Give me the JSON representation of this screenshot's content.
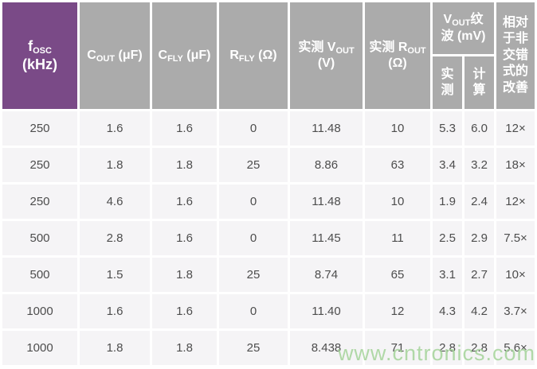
{
  "table": {
    "headers": {
      "fosc": {
        "pre": "f",
        "sub": "OSC",
        "line2": "(kHz)"
      },
      "cout": {
        "pre": "C",
        "sub": "OUT",
        "post": " (μF)"
      },
      "cfly": {
        "pre": "C",
        "sub": "FLY",
        "post": " (μF)"
      },
      "rfly": {
        "pre": "R",
        "sub": "FLY",
        "post": " (Ω)"
      },
      "vout_measured": {
        "pre": "实测 V",
        "sub": "OUT",
        "line2": "(V)"
      },
      "rout_measured": {
        "pre": "实测 R",
        "sub": "OUT",
        "line2": "(Ω)"
      },
      "ripple_group": {
        "pre": "V",
        "sub": "OUT",
        "post": "纹",
        "line2": "波 (mV)"
      },
      "ripple_measured": {
        "l1": "实",
        "l2": "测"
      },
      "ripple_calculated": {
        "l1": "计",
        "l2": "算"
      },
      "improvement": {
        "lines": [
          "相对",
          "于非",
          "交错",
          "式的",
          "改善"
        ]
      }
    },
    "rows": [
      [
        "250",
        "1.6",
        "1.6",
        "0",
        "11.48",
        "10",
        "5.3",
        "6.0",
        "12×"
      ],
      [
        "250",
        "1.8",
        "1.8",
        "25",
        "8.86",
        "63",
        "3.4",
        "3.2",
        "18×"
      ],
      [
        "250",
        "4.6",
        "1.6",
        "0",
        "11.48",
        "10",
        "1.9",
        "2.4",
        "12×"
      ],
      [
        "500",
        "2.8",
        "1.6",
        "0",
        "11.45",
        "11",
        "2.5",
        "2.9",
        "7.5×"
      ],
      [
        "500",
        "1.5",
        "1.8",
        "25",
        "8.74",
        "65",
        "3.1",
        "2.7",
        "10×"
      ],
      [
        "1000",
        "1.6",
        "1.6",
        "0",
        "11.40",
        "12",
        "4.3",
        "4.2",
        "3.7×"
      ],
      [
        "1000",
        "1.8",
        "1.8",
        "25",
        "8.438",
        "71",
        "2.8",
        "2.8",
        "5.6×"
      ]
    ]
  },
  "chart_data": {
    "type": "table",
    "columns": [
      "fOSC (kHz)",
      "COUT (μF)",
      "CFLY (μF)",
      "RFLY (Ω)",
      "实测 VOUT (V)",
      "实测 ROUT (Ω)",
      "VOUT纹波 (mV) 实测",
      "VOUT纹波 (mV) 计算",
      "相对于非交错式的改善"
    ],
    "rows": [
      [
        250,
        1.6,
        1.6,
        0,
        11.48,
        10,
        5.3,
        6.0,
        "12×"
      ],
      [
        250,
        1.8,
        1.8,
        25,
        8.86,
        63,
        3.4,
        3.2,
        "18×"
      ],
      [
        250,
        4.6,
        1.6,
        0,
        11.48,
        10,
        1.9,
        2.4,
        "12×"
      ],
      [
        500,
        2.8,
        1.6,
        0,
        11.45,
        11,
        2.5,
        2.9,
        "7.5×"
      ],
      [
        500,
        1.5,
        1.8,
        25,
        8.74,
        65,
        3.1,
        2.7,
        "10×"
      ],
      [
        1000,
        1.6,
        1.6,
        0,
        11.4,
        12,
        4.3,
        4.2,
        "3.7×"
      ],
      [
        1000,
        1.8,
        1.8,
        25,
        8.438,
        71,
        2.8,
        2.8,
        "5.6×"
      ]
    ]
  },
  "colors": {
    "header_accent": "#7a4a87",
    "header_gray": "#ababab",
    "row_background": "#f5f4f6",
    "data_text": "#4d4d4d",
    "watermark_green": "#a5d49a"
  },
  "watermark": {
    "text": "www.cntronics.com"
  }
}
